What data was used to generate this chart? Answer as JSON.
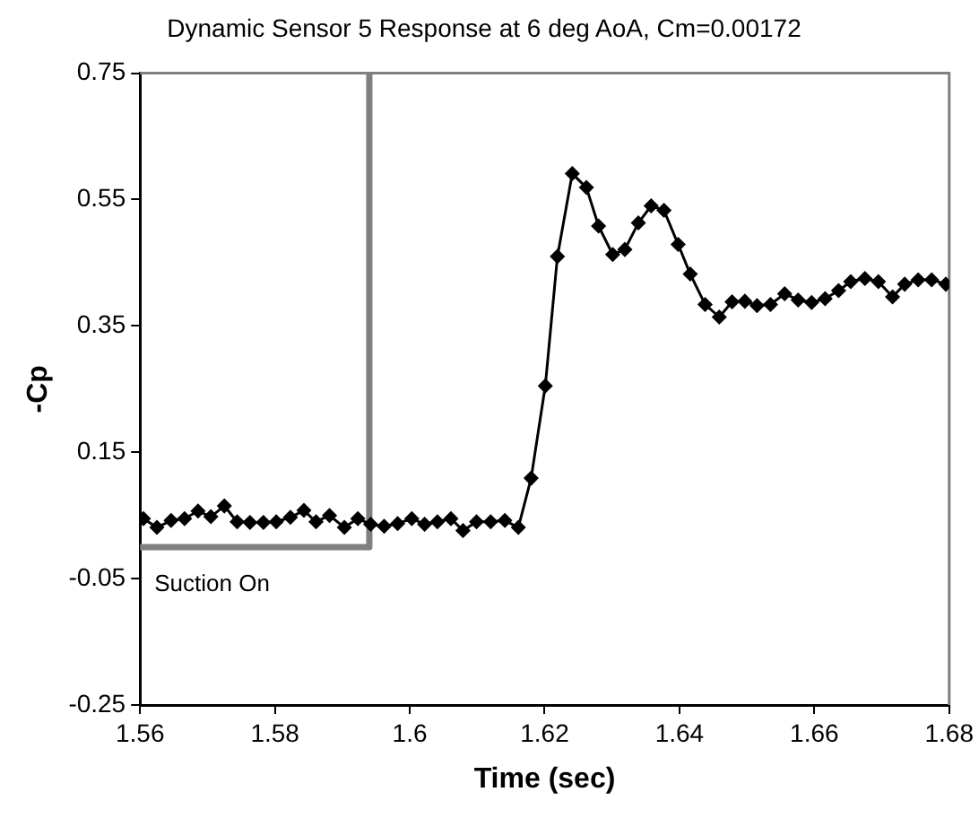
{
  "chart_data": {
    "type": "line",
    "title": "Dynamic Sensor 5 Response at 6 deg AoA, Cm=0.00172",
    "xlabel": "Time (sec)",
    "ylabel": "-Cp",
    "xlim": [
      1.56,
      1.68
    ],
    "xticks": [
      1.56,
      1.58,
      {
        "value": 1.6,
        "label": "1.6"
      },
      1.62,
      1.64,
      1.66,
      1.68
    ],
    "ylim": [
      -0.25,
      0.75
    ],
    "yticks": [
      -0.25,
      -0.05,
      0.15,
      0.35,
      0.55,
      0.75
    ],
    "grid": false,
    "legend": false,
    "marker": "diamond",
    "line_style": "solid",
    "annotations": [
      "Suction On"
    ],
    "series": [
      {
        "color": "#000000",
        "x": [
          1.5605,
          1.5625,
          1.5646,
          1.5666,
          1.5686,
          1.5705,
          1.5725,
          1.5744,
          1.5763,
          1.5783,
          1.5802,
          1.5823,
          1.5843,
          1.5861,
          1.5881,
          1.5903,
          1.5923,
          1.5942,
          1.5962,
          1.5982,
          1.6003,
          1.6022,
          1.6041,
          1.6061,
          1.6079,
          1.6099,
          1.612,
          1.6141,
          1.6161,
          1.618,
          1.6201,
          1.6219,
          1.6241,
          1.6262,
          1.628,
          1.6301,
          1.6319,
          1.6339,
          1.6358,
          1.6377,
          1.6398,
          1.6416,
          1.6438,
          1.6459,
          1.6478,
          1.6497,
          1.6515,
          1.6535,
          1.6556,
          1.6576,
          1.6596,
          1.6616,
          1.6636,
          1.6654,
          1.6675,
          1.6695,
          1.6716,
          1.6734,
          1.6754,
          1.6774,
          1.6795
        ],
        "values": [
          0.045,
          0.031,
          0.042,
          0.045,
          0.057,
          0.048,
          0.065,
          0.04,
          0.039,
          0.039,
          0.04,
          0.047,
          0.058,
          0.04,
          0.05,
          0.031,
          0.045,
          0.036,
          0.033,
          0.037,
          0.045,
          0.036,
          0.04,
          0.045,
          0.026,
          0.04,
          0.04,
          0.042,
          0.031,
          0.109,
          0.255,
          0.46,
          0.591,
          0.569,
          0.508,
          0.463,
          0.471,
          0.513,
          0.54,
          0.533,
          0.479,
          0.432,
          0.384,
          0.364,
          0.388,
          0.389,
          0.382,
          0.384,
          0.401,
          0.391,
          0.387,
          0.393,
          0.406,
          0.42,
          0.425,
          0.42,
          0.396,
          0.416,
          0.423,
          0.423,
          0.416
        ]
      },
      {
        "type": "step",
        "marker": "none",
        "color": "#808080",
        "x": [
          1.56,
          1.594,
          1.594
        ],
        "values": [
          0,
          0,
          0.75
        ]
      }
    ]
  }
}
